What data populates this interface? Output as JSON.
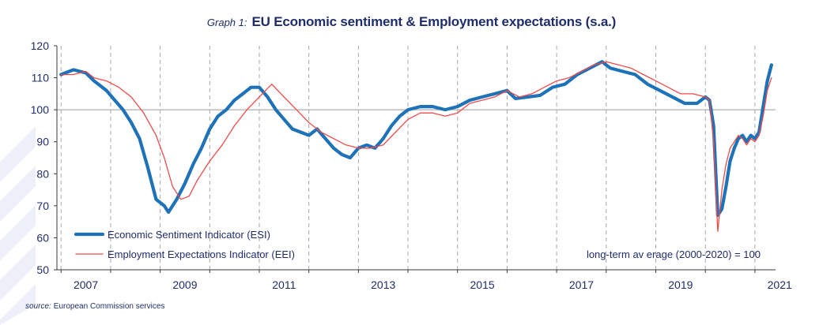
{
  "title": {
    "prefix": "Graph 1:",
    "main": "EU Economic sentiment & Employment expectations (s.a.)"
  },
  "source": {
    "label": "source:",
    "text": "European Commission services"
  },
  "colors": {
    "esi": "#1d72b8",
    "eei": "#ef4a4a",
    "axis": "#3a3a3a",
    "refline": "#9a9a9a",
    "gridline": "#a8a8a8",
    "text": "#1f2d6b",
    "deco": "#e8ecf6"
  },
  "chart_data": {
    "type": "line",
    "title": "EU Economic sentiment & Employment expectations (s.a.)",
    "ylim": [
      50,
      120
    ],
    "yticks": [
      50,
      60,
      70,
      80,
      90,
      100,
      110,
      120
    ],
    "xlim": [
      "2006-12",
      "2021-06"
    ],
    "xtick_labels": [
      "2007",
      "2009",
      "2011",
      "2013",
      "2015",
      "2017",
      "2019",
      "2021"
    ],
    "vertical_gridlines_at_year_boundaries": true,
    "reference_line": 100,
    "reference_note": "long-term av erage (2000-2020) = 100",
    "legend_position": "bottom-left",
    "series": [
      {
        "name": "Economic Sentiment Indicator (ESI)",
        "style": "thick",
        "points": [
          [
            "2007-01",
            111
          ],
          [
            "2007-04",
            112.5
          ],
          [
            "2007-07",
            111.5
          ],
          [
            "2007-09",
            109
          ],
          [
            "2007-12",
            106
          ],
          [
            "2008-02",
            103
          ],
          [
            "2008-04",
            100
          ],
          [
            "2008-06",
            96
          ],
          [
            "2008-08",
            91
          ],
          [
            "2008-10",
            82
          ],
          [
            "2008-12",
            72
          ],
          [
            "2009-02",
            70
          ],
          [
            "2009-03",
            68
          ],
          [
            "2009-05",
            72
          ],
          [
            "2009-07",
            77
          ],
          [
            "2009-09",
            83
          ],
          [
            "2009-11",
            88
          ],
          [
            "2010-01",
            94
          ],
          [
            "2010-03",
            98
          ],
          [
            "2010-05",
            100
          ],
          [
            "2010-07",
            103
          ],
          [
            "2010-09",
            105
          ],
          [
            "2010-11",
            107
          ],
          [
            "2011-01",
            107
          ],
          [
            "2011-03",
            104
          ],
          [
            "2011-05",
            100
          ],
          [
            "2011-07",
            97
          ],
          [
            "2011-09",
            94
          ],
          [
            "2011-11",
            93
          ],
          [
            "2012-01",
            92
          ],
          [
            "2012-03",
            94
          ],
          [
            "2012-05",
            91
          ],
          [
            "2012-07",
            88
          ],
          [
            "2012-09",
            86
          ],
          [
            "2012-11",
            85
          ],
          [
            "2013-01",
            88
          ],
          [
            "2013-03",
            89
          ],
          [
            "2013-05",
            88
          ],
          [
            "2013-07",
            91
          ],
          [
            "2013-09",
            95
          ],
          [
            "2013-11",
            98
          ],
          [
            "2014-01",
            100
          ],
          [
            "2014-04",
            101
          ],
          [
            "2014-07",
            101
          ],
          [
            "2014-10",
            100
          ],
          [
            "2015-01",
            101
          ],
          [
            "2015-04",
            103
          ],
          [
            "2015-07",
            104
          ],
          [
            "2015-10",
            105
          ],
          [
            "2016-01",
            106
          ],
          [
            "2016-03",
            103.5
          ],
          [
            "2016-06",
            104
          ],
          [
            "2016-09",
            104.5
          ],
          [
            "2016-12",
            107
          ],
          [
            "2017-03",
            108
          ],
          [
            "2017-06",
            111
          ],
          [
            "2017-09",
            113
          ],
          [
            "2017-12",
            115
          ],
          [
            "2018-02",
            113
          ],
          [
            "2018-05",
            112
          ],
          [
            "2018-08",
            111
          ],
          [
            "2018-11",
            108
          ],
          [
            "2019-02",
            106
          ],
          [
            "2019-05",
            104
          ],
          [
            "2019-08",
            102
          ],
          [
            "2019-11",
            102
          ],
          [
            "2020-01",
            104
          ],
          [
            "2020-02",
            103
          ],
          [
            "2020-03",
            95
          ],
          [
            "2020-04",
            67
          ],
          [
            "2020-05",
            69
          ],
          [
            "2020-06",
            76
          ],
          [
            "2020-07",
            84
          ],
          [
            "2020-08",
            88
          ],
          [
            "2020-09",
            91
          ],
          [
            "2020-10",
            92
          ],
          [
            "2020-11",
            90
          ],
          [
            "2020-12",
            92
          ],
          [
            "2021-01",
            91
          ],
          [
            "2021-02",
            93
          ],
          [
            "2021-03",
            101
          ],
          [
            "2021-04",
            109
          ],
          [
            "2021-05",
            114
          ]
        ]
      },
      {
        "name": "Employment Expectations Indicator (EEI)",
        "style": "thin",
        "points": [
          [
            "2007-01",
            111
          ],
          [
            "2007-04",
            111
          ],
          [
            "2007-07",
            112
          ],
          [
            "2007-09",
            110
          ],
          [
            "2007-12",
            109
          ],
          [
            "2008-03",
            107
          ],
          [
            "2008-06",
            104
          ],
          [
            "2008-09",
            99
          ],
          [
            "2008-12",
            92
          ],
          [
            "2009-02",
            85
          ],
          [
            "2009-04",
            76
          ],
          [
            "2009-06",
            72
          ],
          [
            "2009-08",
            73
          ],
          [
            "2009-10",
            78
          ],
          [
            "2010-01",
            84
          ],
          [
            "2010-04",
            89
          ],
          [
            "2010-07",
            95
          ],
          [
            "2010-10",
            100
          ],
          [
            "2011-01",
            104
          ],
          [
            "2011-04",
            108
          ],
          [
            "2011-07",
            104
          ],
          [
            "2011-10",
            100
          ],
          [
            "2012-01",
            96
          ],
          [
            "2012-04",
            93
          ],
          [
            "2012-07",
            91
          ],
          [
            "2012-10",
            89
          ],
          [
            "2013-01",
            88
          ],
          [
            "2013-04",
            88
          ],
          [
            "2013-07",
            89
          ],
          [
            "2013-10",
            93
          ],
          [
            "2014-01",
            97
          ],
          [
            "2014-04",
            99
          ],
          [
            "2014-07",
            99
          ],
          [
            "2014-10",
            98
          ],
          [
            "2015-01",
            99
          ],
          [
            "2015-04",
            102
          ],
          [
            "2015-07",
            103
          ],
          [
            "2015-10",
            104
          ],
          [
            "2016-01",
            106
          ],
          [
            "2016-04",
            104
          ],
          [
            "2016-07",
            105
          ],
          [
            "2016-10",
            107
          ],
          [
            "2017-01",
            109
          ],
          [
            "2017-04",
            110
          ],
          [
            "2017-07",
            112
          ],
          [
            "2017-10",
            114
          ],
          [
            "2018-01",
            115
          ],
          [
            "2018-04",
            114
          ],
          [
            "2018-07",
            113
          ],
          [
            "2018-10",
            111
          ],
          [
            "2019-01",
            109
          ],
          [
            "2019-04",
            107
          ],
          [
            "2019-07",
            105
          ],
          [
            "2019-10",
            105
          ],
          [
            "2020-01",
            104
          ],
          [
            "2020-02",
            103
          ],
          [
            "2020-03",
            90
          ],
          [
            "2020-04",
            62
          ],
          [
            "2020-05",
            75
          ],
          [
            "2020-06",
            83
          ],
          [
            "2020-07",
            88
          ],
          [
            "2020-08",
            90
          ],
          [
            "2020-09",
            92
          ],
          [
            "2020-10",
            91
          ],
          [
            "2020-11",
            89
          ],
          [
            "2020-12",
            91
          ],
          [
            "2021-01",
            90
          ],
          [
            "2021-02",
            92
          ],
          [
            "2021-03",
            98
          ],
          [
            "2021-04",
            106
          ],
          [
            "2021-05",
            110
          ]
        ]
      }
    ]
  }
}
